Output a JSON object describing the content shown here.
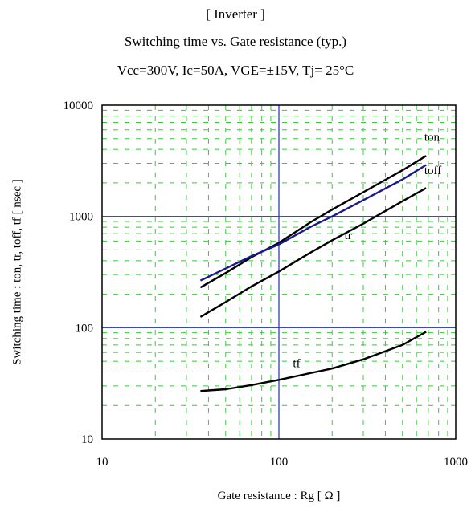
{
  "header": {
    "title_1": "[ Inverter ]",
    "title_2": "Switching time  vs.  Gate resistance  (typ.)",
    "title_3": "Vcc=300V, Ic=50A, VGE=±15V, Tj= 25°C"
  },
  "chart_data": {
    "type": "line",
    "title": "Switching time  vs.  Gate resistance  (typ.)",
    "xlabel": "Gate resistance  :  Rg  [ Ω ]",
    "ylabel": "Switching time  :  ton, tr, toff, tf  [ nsec ]",
    "x_scale": "log",
    "y_scale": "log",
    "xlim": [
      10,
      1000
    ],
    "ylim": [
      10,
      10000
    ],
    "x_ticks": [
      "10",
      "100",
      "1000"
    ],
    "y_ticks": [
      "10",
      "100",
      "1000",
      "10000"
    ],
    "grid": true,
    "series": [
      {
        "name": "ton",
        "color": "#000000",
        "x": [
          36,
          50,
          70,
          100,
          150,
          200,
          300,
          500,
          680
        ],
        "y": [
          230,
          310,
          430,
          580,
          880,
          1150,
          1650,
          2600,
          3500
        ]
      },
      {
        "name": "toff",
        "color": "#1a1a8c",
        "x": [
          36,
          50,
          70,
          100,
          150,
          200,
          300,
          500,
          680
        ],
        "y": [
          265,
          340,
          440,
          560,
          800,
          1000,
          1400,
          2150,
          2900
        ]
      },
      {
        "name": "tr",
        "color": "#000000",
        "x": [
          36,
          50,
          70,
          100,
          150,
          200,
          300,
          500,
          680
        ],
        "y": [
          125,
          170,
          235,
          320,
          470,
          610,
          860,
          1370,
          1800
        ]
      },
      {
        "name": "tf",
        "color": "#000000",
        "x": [
          36,
          50,
          70,
          100,
          150,
          200,
          300,
          500,
          680
        ],
        "y": [
          27,
          28,
          30.5,
          34,
          39,
          43,
          52,
          70,
          92
        ]
      }
    ],
    "annotations": [
      {
        "text": "ton",
        "series": "ton"
      },
      {
        "text": "toff",
        "series": "toff"
      },
      {
        "text": "tr",
        "series": "tr"
      },
      {
        "text": "tf",
        "series": "tf"
      }
    ]
  }
}
